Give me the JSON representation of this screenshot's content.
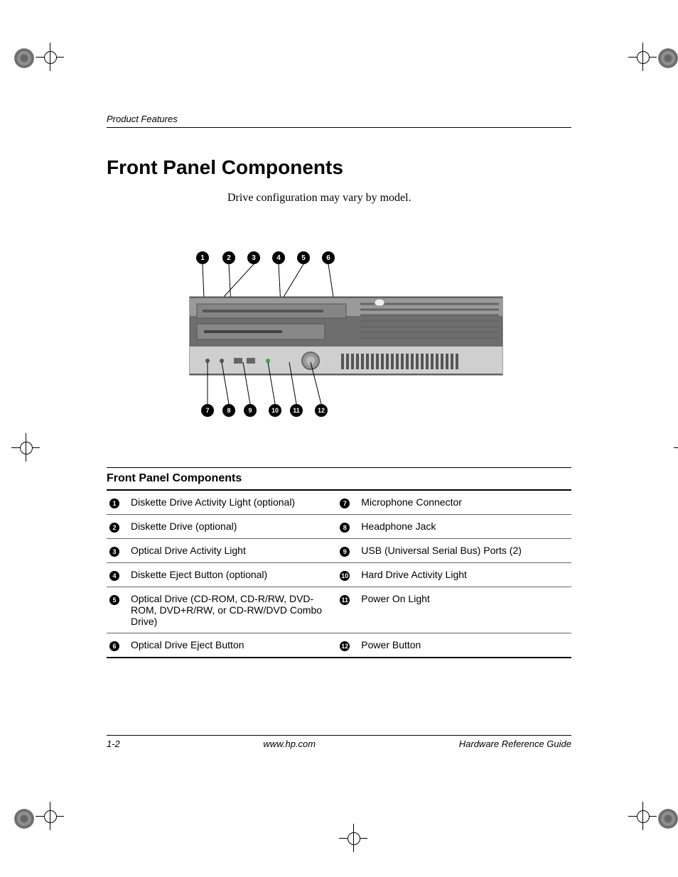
{
  "header": {
    "section": "Product Features"
  },
  "heading": "Front Panel Components",
  "intro": "Drive configuration may vary by model.",
  "diagram": {
    "top_callouts": [
      "1",
      "2",
      "3",
      "4",
      "5",
      "6"
    ],
    "bottom_callouts": [
      "7",
      "8",
      "9",
      "10",
      "11",
      "12"
    ],
    "chassis_color": "#7a7a7a",
    "light_panel": "#d0d0d0",
    "vent_color": "#8a8a8a",
    "callout_fill": "#000000",
    "callout_text": "#ffffff"
  },
  "table": {
    "title": "Front Panel Components",
    "rows": [
      {
        "l_num": "1",
        "l_text": "Diskette Drive Activity Light (optional)",
        "r_num": "7",
        "r_text": "Microphone Connector"
      },
      {
        "l_num": "2",
        "l_text": "Diskette Drive (optional)",
        "r_num": "8",
        "r_text": "Headphone Jack"
      },
      {
        "l_num": "3",
        "l_text": "Optical Drive Activity Light",
        "r_num": "9",
        "r_text": "USB (Universal Serial Bus) Ports (2)"
      },
      {
        "l_num": "4",
        "l_text": "Diskette Eject Button (optional)",
        "r_num": "10",
        "r_text": "Hard Drive Activity Light"
      },
      {
        "l_num": "5",
        "l_text": "Optical Drive (CD-ROM, CD-R/RW, DVD-ROM, DVD+R/RW, or CD-RW/DVD Combo Drive)",
        "r_num": "11",
        "r_text": "Power On Light"
      },
      {
        "l_num": "6",
        "l_text": "Optical Drive Eject Button",
        "r_num": "12",
        "r_text": "Power Button"
      }
    ]
  },
  "footer": {
    "page": "1-2",
    "url": "www.hp.com",
    "doc": "Hardware Reference Guide"
  }
}
